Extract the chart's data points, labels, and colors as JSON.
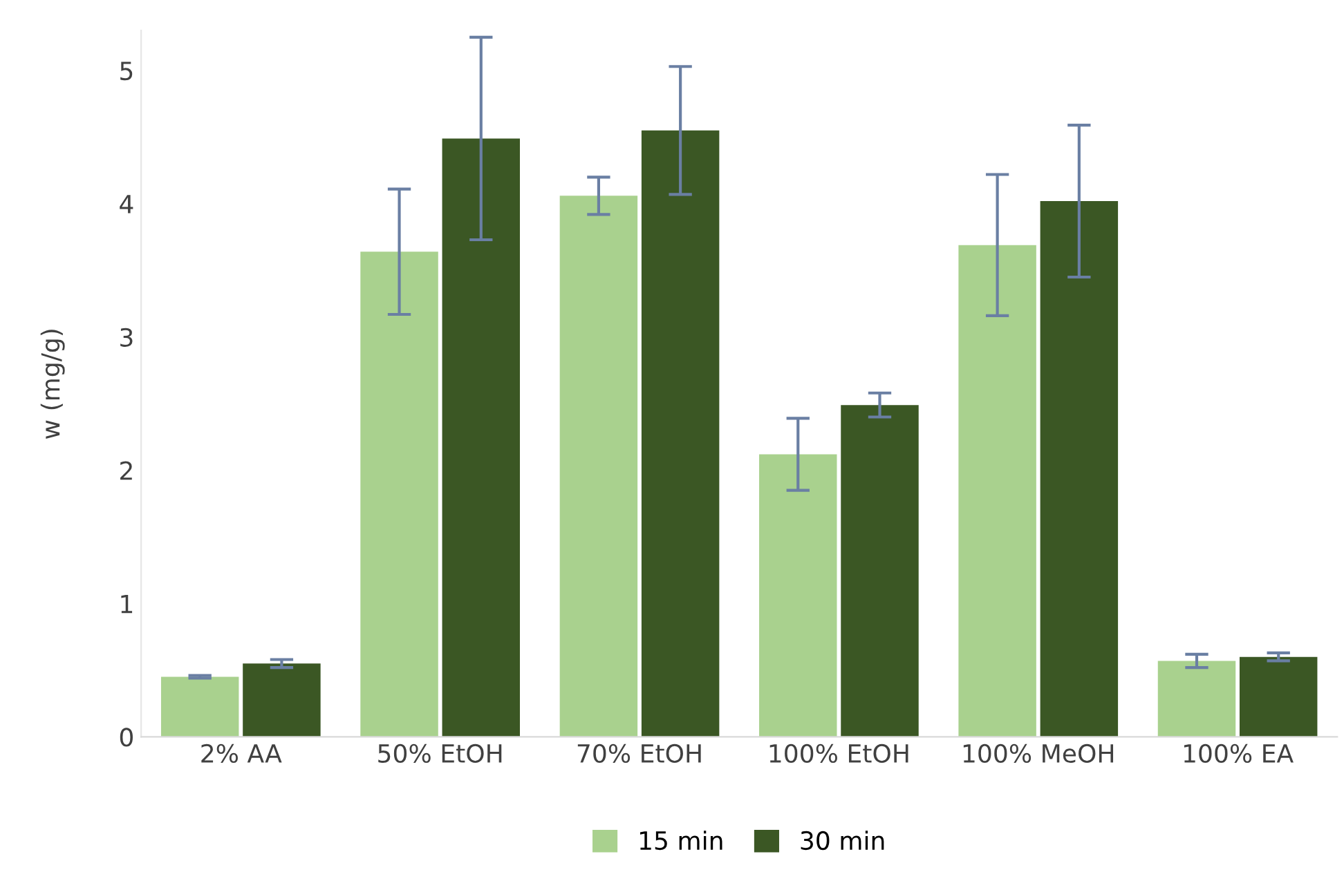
{
  "chart_data": {
    "type": "bar",
    "ylabel": "w (mg/g)",
    "categories": [
      "2% AA",
      "50% EtOH",
      "70% EtOH",
      "100% EtOH",
      "100% MeOH",
      "100% EA"
    ],
    "series": [
      {
        "name": "15 min",
        "color": "#a9d18e",
        "values": [
          0.45,
          3.64,
          4.06,
          2.12,
          3.69,
          0.57
        ],
        "errors": [
          0.01,
          0.47,
          0.14,
          0.27,
          0.53,
          0.05
        ]
      },
      {
        "name": "30 min",
        "color": "#3b5724",
        "values": [
          0.55,
          4.49,
          4.55,
          2.49,
          4.02,
          0.6
        ],
        "errors": [
          0.03,
          0.76,
          0.48,
          0.09,
          0.57,
          0.03
        ]
      }
    ],
    "ylim": [
      0,
      5.3
    ],
    "yticks": [
      0,
      1,
      2,
      3,
      4,
      5
    ],
    "grid": false,
    "legend": "bottom"
  }
}
